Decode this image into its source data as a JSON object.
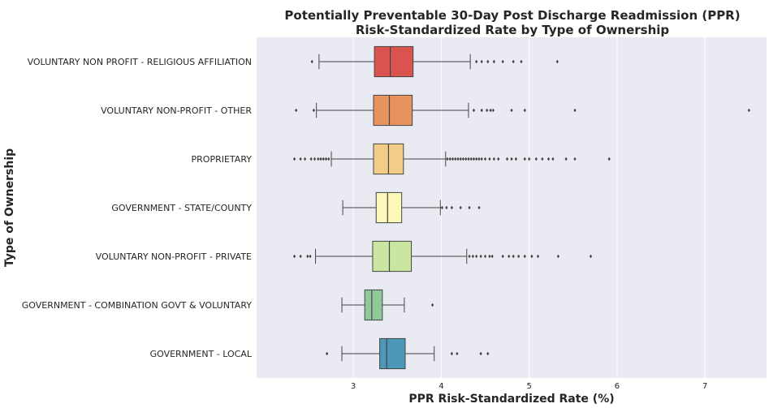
{
  "chart_data": {
    "type": "boxplot",
    "orientation": "horizontal",
    "title": "Potentially Preventable 30-Day Post Discharge Readmission (PPR)",
    "subtitle": "Risk-Standardized Rate by Type of Ownership",
    "xlabel": "PPR Risk-Standardized Rate (%)",
    "ylabel": "Type of Ownership",
    "xlim": [
      1.9,
      7.7
    ],
    "xticks": [
      "3",
      "4",
      "5",
      "6",
      "7"
    ],
    "xtick_values": [
      3,
      4,
      5,
      6,
      7
    ],
    "grid": "vertical",
    "background": "#eaeaf2",
    "series": [
      {
        "name": "VOLUNTARY NON PROFIT - RELIGIOUS AFFILIATION",
        "color": "#d9534f",
        "whisker_low": 2.61,
        "q1": 3.24,
        "median": 3.42,
        "q3": 3.68,
        "whisker_high": 4.33,
        "outliers": [
          2.53,
          4.4,
          4.46,
          4.53,
          4.6,
          4.7,
          4.82,
          4.91,
          5.32
        ]
      },
      {
        "name": "VOLUNTARY NON-PROFIT - OTHER",
        "color": "#e8925d",
        "whisker_low": 2.58,
        "q1": 3.23,
        "median": 3.41,
        "q3": 3.67,
        "whisker_high": 4.31,
        "outliers": [
          2.35,
          2.55,
          4.37,
          4.46,
          4.52,
          4.56,
          4.59,
          4.8,
          4.95,
          5.52,
          7.5
        ]
      },
      {
        "name": "PROPRIETARY",
        "color": "#f2cd88",
        "whisker_low": 2.75,
        "q1": 3.23,
        "median": 3.4,
        "q3": 3.57,
        "whisker_high": 4.05,
        "outliers": [
          2.33,
          2.4,
          2.45,
          2.52,
          2.56,
          2.6,
          2.63,
          2.66,
          2.69,
          2.72,
          4.07,
          4.1,
          4.13,
          4.16,
          4.19,
          4.22,
          4.25,
          4.28,
          4.31,
          4.34,
          4.37,
          4.4,
          4.43,
          4.46,
          4.5,
          4.55,
          4.6,
          4.65,
          4.75,
          4.8,
          4.85,
          4.95,
          5.0,
          5.08,
          5.15,
          5.22,
          5.27,
          5.42,
          5.52,
          5.91
        ]
      },
      {
        "name": "GOVERNMENT - STATE/COUNTY",
        "color": "#fbf8b9",
        "whisker_low": 2.88,
        "q1": 3.26,
        "median": 3.39,
        "q3": 3.55,
        "whisker_high": 3.99,
        "outliers": [
          4.01,
          4.06,
          4.12,
          4.22,
          4.32,
          4.43
        ]
      },
      {
        "name": "VOLUNTARY NON-PROFIT - PRIVATE",
        "color": "#cbe6a1",
        "whisker_low": 2.57,
        "q1": 3.22,
        "median": 3.41,
        "q3": 3.66,
        "whisker_high": 4.29,
        "outliers": [
          2.33,
          2.4,
          2.48,
          2.51,
          4.32,
          4.36,
          4.4,
          4.45,
          4.5,
          4.55,
          4.58,
          4.7,
          4.77,
          4.82,
          4.88,
          4.95,
          5.03,
          5.1,
          5.33,
          5.7
        ]
      },
      {
        "name": "GOVERNMENT - COMBINATION GOVT & VOLUNTARY",
        "color": "#8fcb99",
        "whisker_low": 2.87,
        "q1": 3.13,
        "median": 3.21,
        "q3": 3.33,
        "whisker_high": 3.58,
        "outliers": [
          3.9
        ]
      },
      {
        "name": "GOVERNMENT - LOCAL",
        "color": "#4b98b8",
        "whisker_low": 2.87,
        "q1": 3.3,
        "median": 3.38,
        "q3": 3.59,
        "whisker_high": 3.92,
        "outliers": [
          2.7,
          4.12,
          4.18,
          4.45,
          4.53
        ]
      }
    ]
  }
}
